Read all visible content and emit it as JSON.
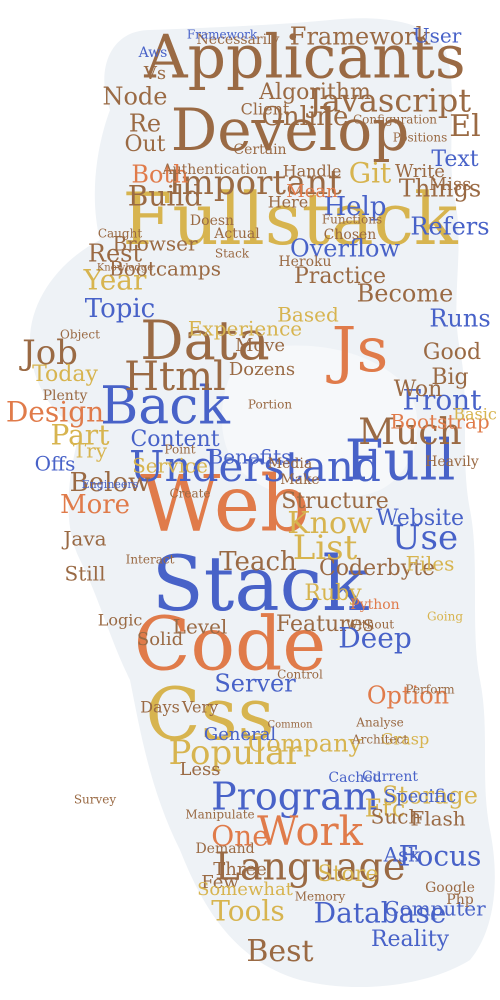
{
  "words": [
    {
      "text": "Applicants",
      "color": "brown"
    },
    {
      "text": "Develop",
      "color": "brown"
    },
    {
      "text": "Fullstack",
      "color": "gold"
    },
    {
      "text": "Important",
      "color": "brown"
    },
    {
      "text": "Web",
      "color": "orange"
    },
    {
      "text": "Stack",
      "color": "blue"
    },
    {
      "text": "Code",
      "color": "orange"
    },
    {
      "text": "Css",
      "color": "gold"
    },
    {
      "text": "Back",
      "color": "blue"
    },
    {
      "text": "Understand",
      "color": "blue"
    },
    {
      "text": "Full",
      "color": "blue"
    },
    {
      "text": "Js",
      "color": "orange"
    },
    {
      "text": "Data",
      "color": "brown"
    },
    {
      "text": "Html",
      "color": "brown"
    },
    {
      "text": "Program",
      "color": "blue"
    },
    {
      "text": "Language",
      "color": "brown"
    },
    {
      "text": "Work",
      "color": "orange"
    },
    {
      "text": "Javascript",
      "color": "brown"
    },
    {
      "text": "Framework",
      "color": "brown"
    },
    {
      "text": "Database",
      "color": "blue"
    },
    {
      "text": "Online",
      "color": "brown"
    },
    {
      "text": "Node",
      "color": "brown"
    },
    {
      "text": "Much",
      "color": "brown"
    },
    {
      "text": "Use",
      "color": "blue"
    },
    {
      "text": "List",
      "color": "gold"
    },
    {
      "text": "Teach",
      "color": "brown"
    },
    {
      "text": "Know",
      "color": "gold"
    },
    {
      "text": "Popular",
      "color": "gold"
    },
    {
      "text": "Help",
      "color": "blue"
    },
    {
      "text": "Git",
      "color": "gold"
    },
    {
      "text": "Things",
      "color": "brown"
    },
    {
      "text": "Build",
      "color": "brown"
    },
    {
      "text": "Both",
      "color": "orange"
    },
    {
      "text": "Topic",
      "color": "blue"
    },
    {
      "text": "Year",
      "color": "gold"
    },
    {
      "text": "Job",
      "color": "brown"
    },
    {
      "text": "Design",
      "color": "orange"
    },
    {
      "text": "Part",
      "color": "gold"
    },
    {
      "text": "Below",
      "color": "brown"
    },
    {
      "text": "More",
      "color": "orange"
    },
    {
      "text": "Content",
      "color": "blue"
    },
    {
      "text": "Front",
      "color": "blue"
    },
    {
      "text": "Bootstrap",
      "color": "orange"
    },
    {
      "text": "Structure",
      "color": "brown"
    },
    {
      "text": "Website",
      "color": "blue"
    },
    {
      "text": "Coderbyte",
      "color": "brown"
    },
    {
      "text": "Ruby",
      "color": "gold"
    },
    {
      "text": "Java",
      "color": "brown"
    },
    {
      "text": "Still",
      "color": "brown"
    },
    {
      "text": "Level",
      "color": "brown"
    },
    {
      "text": "Features",
      "color": "brown"
    },
    {
      "text": "Server",
      "color": "blue"
    },
    {
      "text": "Company",
      "color": "gold"
    },
    {
      "text": "Option",
      "color": "orange"
    },
    {
      "text": "Deep",
      "color": "blue"
    },
    {
      "text": "Storage",
      "color": "gold"
    },
    {
      "text": "Focus",
      "color": "blue"
    },
    {
      "text": "Etc",
      "color": "gold"
    },
    {
      "text": "One",
      "color": "orange"
    },
    {
      "text": "Flash",
      "color": "brown"
    },
    {
      "text": "Best",
      "color": "brown"
    },
    {
      "text": "Tools",
      "color": "gold"
    },
    {
      "text": "Store",
      "color": "gold"
    },
    {
      "text": "Reality",
      "color": "blue"
    },
    {
      "text": "Overflow",
      "color": "blue"
    },
    {
      "text": "Practice",
      "color": "brown"
    },
    {
      "text": "Become",
      "color": "brown"
    },
    {
      "text": "Runs",
      "color": "blue"
    },
    {
      "text": "Good",
      "color": "brown"
    },
    {
      "text": "Today",
      "color": "gold"
    },
    {
      "text": "Refers",
      "color": "blue"
    },
    {
      "text": "Text",
      "color": "blue"
    },
    {
      "text": "Miss",
      "color": "brown"
    },
    {
      "text": "Write",
      "color": "brown"
    },
    {
      "text": "Algorithm",
      "color": "brown"
    },
    {
      "text": "Service",
      "color": "gold"
    },
    {
      "text": "Benefits",
      "color": "blue"
    },
    {
      "text": "Experience",
      "color": "gold"
    },
    {
      "text": "Based",
      "color": "gold"
    },
    {
      "text": "Move",
      "color": "brown"
    },
    {
      "text": "Dozens",
      "color": "brown"
    },
    {
      "text": "Mean",
      "color": "orange"
    },
    {
      "text": "Browser",
      "color": "brown"
    },
    {
      "text": "Bootcamps",
      "color": "brown"
    },
    {
      "text": "Rest",
      "color": "brown"
    },
    {
      "text": "Offs",
      "color": "blue"
    },
    {
      "text": "Try",
      "color": "gold"
    },
    {
      "text": "Big",
      "color": "brown"
    },
    {
      "text": "Won",
      "color": "brown"
    },
    {
      "text": "Basic",
      "color": "gold"
    },
    {
      "text": "Files",
      "color": "gold"
    },
    {
      "text": "Computer",
      "color": "blue"
    },
    {
      "text": "Specific",
      "color": "blue"
    },
    {
      "text": "General",
      "color": "blue"
    },
    {
      "text": "Three",
      "color": "brown"
    },
    {
      "text": "Less",
      "color": "brown"
    },
    {
      "text": "Solid",
      "color": "brown"
    },
    {
      "text": "Days",
      "color": "brown"
    },
    {
      "text": "Logic",
      "color": "brown"
    },
    {
      "text": "Few",
      "color": "brown"
    },
    {
      "text": "Somewhat",
      "color": "gold"
    },
    {
      "text": "Ask",
      "color": "blue"
    },
    {
      "text": "Very",
      "color": "brown"
    },
    {
      "text": "Here",
      "color": "brown"
    },
    {
      "text": "Such",
      "color": "brown"
    },
    {
      "text": "Demand",
      "color": "brown"
    },
    {
      "text": "Necessarily",
      "color": "brown"
    },
    {
      "text": "User",
      "color": "blue"
    },
    {
      "text": "Out",
      "color": "brown"
    },
    {
      "text": "Re",
      "color": "brown"
    },
    {
      "text": "El",
      "color": "brown"
    },
    {
      "text": "Vs",
      "color": "brown"
    },
    {
      "text": "Aws",
      "color": "blue"
    },
    {
      "text": "Client",
      "color": "brown"
    },
    {
      "text": "Certain",
      "color": "brown"
    },
    {
      "text": "Authentication",
      "color": "brown"
    },
    {
      "text": "Handle",
      "color": "brown"
    },
    {
      "text": "Doesn",
      "color": "brown"
    },
    {
      "text": "Actual",
      "color": "brown"
    },
    {
      "text": "Stack",
      "color": "brown"
    },
    {
      "text": "Php",
      "color": "brown"
    },
    {
      "text": "Python",
      "color": "orange"
    },
    {
      "text": "Google",
      "color": "brown"
    },
    {
      "text": "Cached",
      "color": "blue"
    },
    {
      "text": "Current",
      "color": "blue"
    },
    {
      "text": "Grasp",
      "color": "gold"
    },
    {
      "text": "Heavily",
      "color": "brown"
    },
    {
      "text": "Going",
      "color": "gold"
    },
    {
      "text": "Media",
      "color": "brown"
    },
    {
      "text": "Make",
      "color": "brown"
    },
    {
      "text": "Point",
      "color": "brown"
    },
    {
      "text": "Engineers",
      "color": "blue"
    },
    {
      "text": "Plenty",
      "color": "brown"
    },
    {
      "text": "Create",
      "color": "brown"
    },
    {
      "text": "Portion",
      "color": "brown"
    },
    {
      "text": "Interact",
      "color": "brown"
    },
    {
      "text": "Object",
      "color": "brown"
    },
    {
      "text": "Framework",
      "color": "blue"
    },
    {
      "text": "Survey",
      "color": "brown"
    },
    {
      "text": "Manipulate",
      "color": "brown"
    },
    {
      "text": "Control",
      "color": "brown"
    },
    {
      "text": "Analyse",
      "color": "brown"
    },
    {
      "text": "Without",
      "color": "brown"
    },
    {
      "text": "Chosen",
      "color": "brown"
    },
    {
      "text": "Heroku",
      "color": "brown"
    },
    {
      "text": "Positions",
      "color": "brown"
    },
    {
      "text": "Configuration",
      "color": "brown"
    },
    {
      "text": "Functions",
      "color": "brown"
    },
    {
      "text": "Caught",
      "color": "brown"
    },
    {
      "text": "Knowledge",
      "color": "brown"
    },
    {
      "text": "Common",
      "color": "brown"
    },
    {
      "text": "Architect",
      "color": "brown"
    },
    {
      "text": "Perform",
      "color": "brown"
    },
    {
      "text": "Memory",
      "color": "brown"
    }
  ]
}
